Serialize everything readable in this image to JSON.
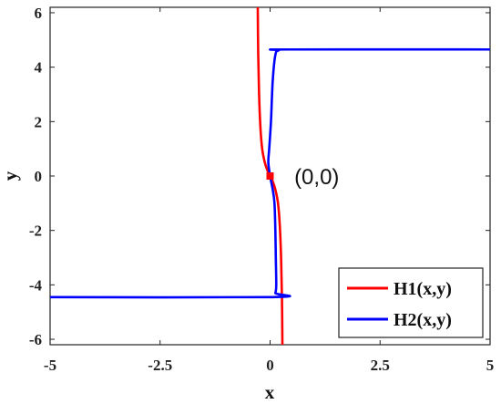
{
  "chart_data": {
    "type": "line",
    "title": "",
    "xlabel": "x",
    "ylabel": "y",
    "xlim": [
      -5,
      5
    ],
    "ylim": [
      -6.2,
      6.2
    ],
    "xticks": [
      "-5",
      "-2.5",
      "0",
      "2.5",
      "5"
    ],
    "xtick_values": [
      -5,
      -2.5,
      0,
      2.5,
      5
    ],
    "yticks": [
      "6",
      "4",
      "2",
      "0",
      "-2",
      "-4",
      "-6"
    ],
    "ytick_values": [
      6,
      4,
      2,
      0,
      -2,
      -4,
      -6
    ],
    "grid": false,
    "legend_position": "bottom-right",
    "annotation": {
      "text": "(0,0)",
      "x": 0.55,
      "y": 0
    },
    "marker": {
      "x": 0,
      "y": 0,
      "color": "#ff0000"
    },
    "series": [
      {
        "name": "H1(x,y)",
        "color": "#ff0000",
        "x": [
          -0.28,
          -0.27,
          -0.25,
          -0.22,
          -0.18,
          -0.12,
          -0.06,
          0,
          0.06,
          0.12,
          0.18,
          0.22,
          0.25,
          0.27,
          0.28
        ],
        "y": [
          6.2,
          4.5,
          3.0,
          1.8,
          1.0,
          0.5,
          0.2,
          0,
          -0.2,
          -0.5,
          -1.0,
          -1.8,
          -3.0,
          -4.5,
          -6.2
        ]
      },
      {
        "name": "H2(x,y)",
        "color": "#0000ff",
        "x": [
          5,
          0.4,
          0.2,
          0.12,
          0.06,
          0.02,
          -0.02,
          -0.04,
          0,
          0.06,
          0.1,
          0.12,
          0.13,
          0.14,
          0.12,
          0.06,
          -5
        ],
        "y": [
          4.65,
          4.65,
          4.62,
          4.45,
          3.5,
          2.0,
          1.0,
          0.5,
          0,
          -0.5,
          -1.0,
          -2.0,
          -3.0,
          -4.0,
          -4.3,
          -4.45,
          -4.45
        ]
      }
    ]
  }
}
